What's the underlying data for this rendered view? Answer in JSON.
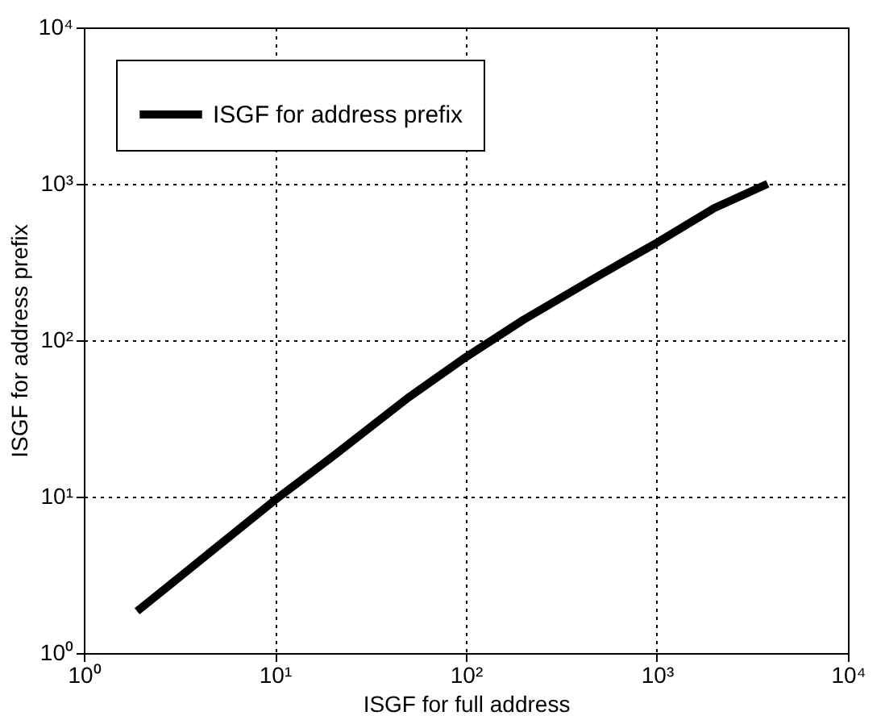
{
  "chart_data": {
    "type": "line",
    "xlabel": "ISGF for full address",
    "ylabel": "ISGF for address prefix",
    "log": "xy",
    "grid": true,
    "legend": "top left",
    "marker": "none",
    "line_style": "solid",
    "xlim": [
      1,
      10000
    ],
    "ylim": [
      1,
      10000
    ],
    "xticks": [
      {
        "value": 1,
        "label": "10⁰"
      },
      {
        "value": 10,
        "label": "10¹"
      },
      {
        "value": 100,
        "label": "10²"
      },
      {
        "value": 1000,
        "label": "10³"
      },
      {
        "value": 10000,
        "label": "10⁴"
      }
    ],
    "yticks": [
      {
        "value": 1,
        "label": "10⁰"
      },
      {
        "value": 10,
        "label": "10¹"
      },
      {
        "value": 100,
        "label": "10²"
      },
      {
        "value": 1000,
        "label": "10³"
      },
      {
        "value": 10000,
        "label": "10⁴"
      }
    ],
    "series": [
      {
        "name": "ISGF for address prefix",
        "color": "#000000",
        "x": [
          1.9,
          3,
          5,
          10,
          20,
          50,
          100,
          200,
          500,
          1000,
          2000,
          3800
        ],
        "values": [
          1.85,
          2.9,
          4.8,
          9.5,
          18,
          43,
          78,
          135,
          260,
          420,
          700,
          1000
        ]
      }
    ]
  }
}
